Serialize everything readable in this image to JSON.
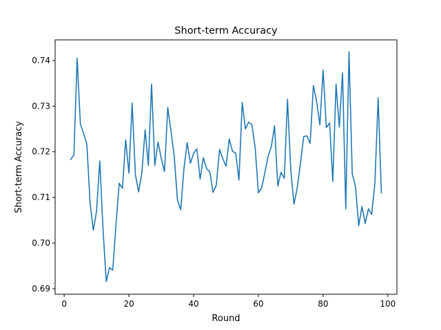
{
  "chart_data": {
    "type": "line",
    "title": "Short-term Accuracy",
    "xlabel": "Round",
    "ylabel": "Short-term Accuracy",
    "xlim": [
      -2.8,
      102.8
    ],
    "ylim": [
      0.6888,
      0.7445
    ],
    "xticks": [
      0,
      20,
      40,
      60,
      80,
      100
    ],
    "xtick_labels": [
      "0",
      "20",
      "40",
      "60",
      "80",
      "100"
    ],
    "yticks": [
      0.69,
      0.7,
      0.71,
      0.72,
      0.73,
      0.74
    ],
    "ytick_labels": [
      "0.69",
      "0.70",
      "0.71",
      "0.72",
      "0.73",
      "0.74"
    ],
    "grid": false,
    "series_color": "#1f77b4",
    "x": [
      2,
      3,
      4,
      5,
      6,
      7,
      8,
      9,
      10,
      11,
      12,
      13,
      14,
      15,
      16,
      17,
      18,
      19,
      20,
      21,
      22,
      23,
      24,
      25,
      26,
      27,
      28,
      29,
      30,
      31,
      32,
      33,
      34,
      35,
      36,
      37,
      38,
      39,
      40,
      41,
      42,
      43,
      44,
      45,
      46,
      47,
      48,
      49,
      50,
      51,
      52,
      53,
      54,
      55,
      56,
      57,
      58,
      59,
      60,
      61,
      62,
      63,
      64,
      65,
      66,
      67,
      68,
      69,
      70,
      71,
      72,
      73,
      74,
      75,
      76,
      77,
      78,
      79,
      80,
      81,
      82,
      83,
      84,
      85,
      86,
      87,
      88,
      89,
      90,
      91,
      92,
      93,
      94,
      95,
      96,
      97,
      98
    ],
    "values": [
      0.7183,
      0.7193,
      0.7405,
      0.7261,
      0.724,
      0.7217,
      0.7088,
      0.7028,
      0.707,
      0.718,
      0.703,
      0.6916,
      0.6946,
      0.6941,
      0.704,
      0.7131,
      0.712,
      0.7226,
      0.7153,
      0.7307,
      0.715,
      0.7112,
      0.7154,
      0.7248,
      0.717,
      0.7348,
      0.717,
      0.7221,
      0.7185,
      0.7157,
      0.7297,
      0.7245,
      0.719,
      0.7094,
      0.7073,
      0.7163,
      0.722,
      0.7175,
      0.7197,
      0.7206,
      0.714,
      0.7187,
      0.7163,
      0.7156,
      0.7111,
      0.7127,
      0.7205,
      0.7185,
      0.7168,
      0.7228,
      0.7201,
      0.7197,
      0.7138,
      0.7308,
      0.725,
      0.7265,
      0.7259,
      0.721,
      0.711,
      0.7121,
      0.7154,
      0.719,
      0.7211,
      0.7257,
      0.7125,
      0.7155,
      0.7142,
      0.7315,
      0.7161,
      0.7085,
      0.7121,
      0.7175,
      0.7233,
      0.7235,
      0.7218,
      0.7345,
      0.731,
      0.7259,
      0.7379,
      0.7253,
      0.7263,
      0.7135,
      0.7348,
      0.7254,
      0.7373,
      0.7075,
      0.7419,
      0.7152,
      0.7124,
      0.7038,
      0.708,
      0.7043,
      0.7075,
      0.7063,
      0.7131,
      0.7318,
      0.711
    ]
  }
}
